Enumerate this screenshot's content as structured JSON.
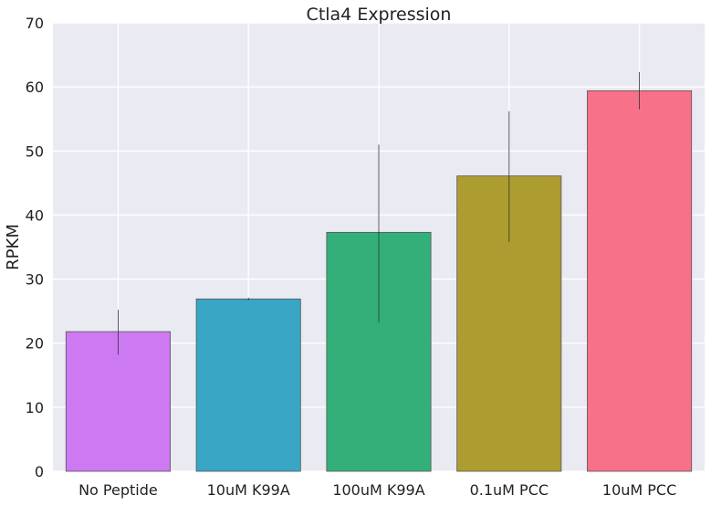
{
  "chart_data": {
    "type": "bar",
    "title": "Ctla4 Expression",
    "xlabel": "",
    "ylabel": "RPKM",
    "ylim": [
      0,
      70
    ],
    "yticks": [
      0,
      10,
      20,
      30,
      40,
      50,
      60,
      70
    ],
    "grid": true,
    "categories": [
      "No Peptide",
      "10uM K99A",
      "100uM K99A",
      "0.1uM PCC",
      "10uM PCC"
    ],
    "values": [
      21.8,
      26.9,
      37.3,
      46.1,
      59.4
    ],
    "error_bars": [
      {
        "low": 18.2,
        "high": 25.2
      },
      {
        "low": 26.7,
        "high": 27.1
      },
      {
        "low": 23.2,
        "high": 51.0
      },
      {
        "low": 35.8,
        "high": 56.2
      },
      {
        "low": 56.5,
        "high": 62.3
      }
    ],
    "colors": [
      "#cc79f2",
      "#38a6c4",
      "#33b07a",
      "#ad9d30",
      "#f77189"
    ]
  }
}
